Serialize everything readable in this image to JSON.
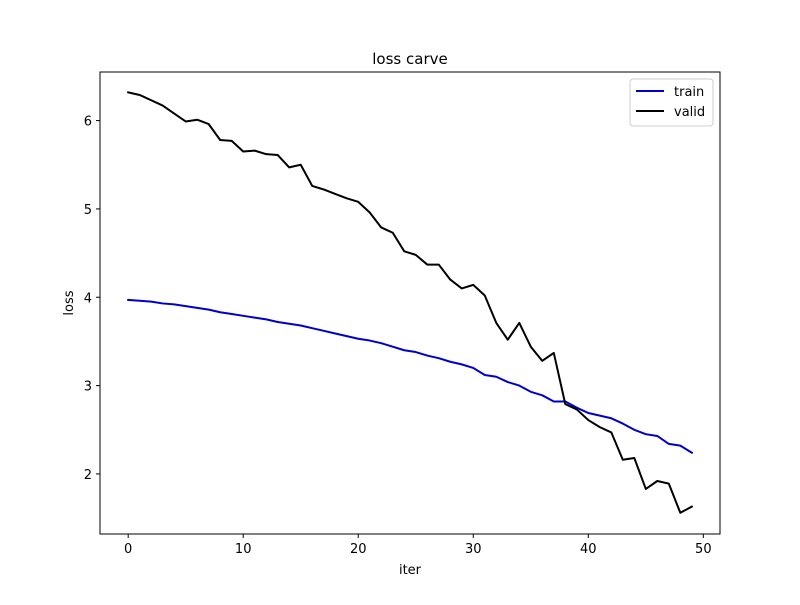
{
  "chart_data": {
    "type": "line",
    "title": "loss carve",
    "xlabel": "iter",
    "ylabel": "loss",
    "xlim": [
      -2.45,
      51.45
    ],
    "ylim": [
      1.32,
      6.55
    ],
    "xticks": [
      0,
      10,
      20,
      30,
      40,
      50
    ],
    "yticks": [
      2,
      3,
      4,
      5,
      6
    ],
    "xtick_labels": [
      "0",
      "10",
      "20",
      "30",
      "40",
      "50"
    ],
    "ytick_labels": [
      "2",
      "3",
      "4",
      "5",
      "6"
    ],
    "grid": false,
    "legend_position": "top-right",
    "x": [
      0,
      1,
      2,
      3,
      4,
      5,
      6,
      7,
      8,
      9,
      10,
      11,
      12,
      13,
      14,
      15,
      16,
      17,
      18,
      19,
      20,
      21,
      22,
      23,
      24,
      25,
      26,
      27,
      28,
      29,
      30,
      31,
      32,
      33,
      34,
      35,
      36,
      37,
      38,
      39,
      40,
      41,
      42,
      43,
      44,
      45,
      46,
      47,
      48,
      49
    ],
    "series": [
      {
        "name": "train",
        "color": "#0000cc",
        "values": [
          3.97,
          3.96,
          3.95,
          3.93,
          3.92,
          3.9,
          3.88,
          3.86,
          3.83,
          3.81,
          3.79,
          3.77,
          3.75,
          3.72,
          3.7,
          3.68,
          3.65,
          3.62,
          3.59,
          3.56,
          3.53,
          3.51,
          3.48,
          3.44,
          3.4,
          3.38,
          3.34,
          3.31,
          3.27,
          3.24,
          3.2,
          3.12,
          3.1,
          3.04,
          3.0,
          2.93,
          2.89,
          2.82,
          2.82,
          2.75,
          2.69,
          2.66,
          2.63,
          2.57,
          2.5,
          2.45,
          2.43,
          2.34,
          2.32,
          2.24
        ]
      },
      {
        "name": "valid",
        "color": "#000000",
        "values": [
          6.32,
          6.29,
          6.23,
          6.17,
          6.08,
          5.99,
          6.01,
          5.96,
          5.78,
          5.77,
          5.65,
          5.66,
          5.62,
          5.61,
          5.47,
          5.5,
          5.26,
          5.22,
          5.17,
          5.12,
          5.08,
          4.96,
          4.79,
          4.73,
          4.52,
          4.48,
          4.37,
          4.37,
          4.2,
          4.1,
          4.14,
          4.02,
          3.71,
          3.52,
          3.71,
          3.44,
          3.28,
          3.37,
          2.79,
          2.73,
          2.61,
          2.53,
          2.47,
          2.16,
          2.18,
          1.83,
          1.92,
          1.89,
          1.56,
          1.63
        ]
      }
    ]
  }
}
